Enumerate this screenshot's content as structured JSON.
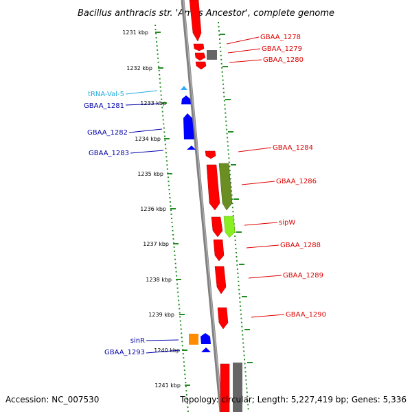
{
  "title": "Bacillus anthracis str. 'Ames Ancestor', complete genome",
  "footer": {
    "accession": "Accession: NC_007530",
    "summary": "Topology: circular; Length: 5,227,419 bp; Genes: 5,336"
  },
  "ticks": [
    "1231 kbp",
    "1232 kbp",
    "1233 kbp",
    "1234 kbp",
    "1235 kbp",
    "1236 kbp",
    "1237 kbp",
    "1238 kbp",
    "1239 kbp",
    "1240 kbp",
    "1241 kbp"
  ],
  "colors": {
    "forward_gene": "#ff0000",
    "reverse_gene": "#0000ff",
    "trna": "#33aaff",
    "pseudo_gray": "#666666",
    "olive": "#6b8e23",
    "lime": "#88ee22",
    "orange": "#ff8c00",
    "ticks": "#228b22",
    "right_label": "#dd0000",
    "left_label": "#0000aa",
    "trna_label": "#22aadd"
  },
  "labels_right": [
    "GBAA_1278",
    "GBAA_1279",
    "GBAA_1280",
    "GBAA_1284",
    "GBAA_1286",
    "sipW",
    "GBAA_1288",
    "GBAA_1289",
    "GBAA_1290"
  ],
  "labels_left": [
    "tRNA-Val-5",
    "GBAA_1281",
    "GBAA_1282",
    "GBAA_1283",
    "sinR",
    "GBAA_1293"
  ]
}
